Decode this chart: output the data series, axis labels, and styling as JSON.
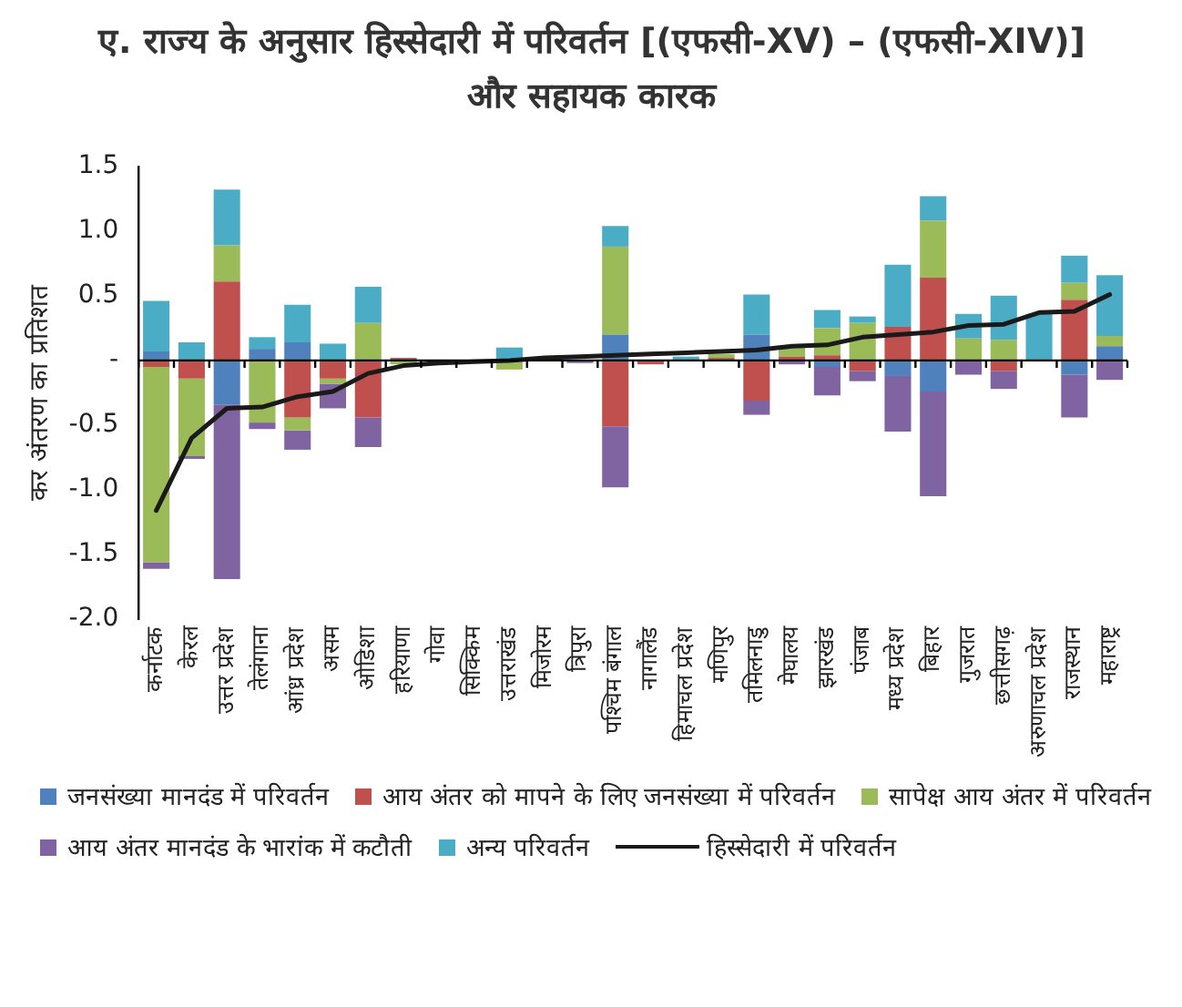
{
  "chart_data": {
    "type": "bar",
    "stacked": true,
    "title": "ए. राज्य के अनुसार हिस्सेदारी में परिवर्तन [(एफसी-XV) – (एफसी-XIV)] और सहायक कारक",
    "ylabel": "कर अंतरण का प्रतिशत",
    "categories": [
      "कर्नाटक",
      "केरल",
      "उत्तर प्रदेश",
      "तेलंगाना",
      "आंध्र प्रदेश",
      "असम",
      "ओडिशा",
      "हरियाणा",
      "गोवा",
      "सिक्किम",
      "उत्तराखंड",
      "मिजोरम",
      "त्रिपुरा",
      "पश्चिम बंगाल",
      "नागालैंड",
      "हिमाचल प्रदेश",
      "मणिपुर",
      "तमिलनाडु",
      "मेघालय",
      "झारखंड",
      "पंजाब",
      "मध्य प्रदेश",
      "बिहार",
      "गुजरात",
      "छत्तीसगढ़",
      "अरुणाचल प्रदेश",
      "राजस्थान",
      "महाराष्ट्र"
    ],
    "ylim": [
      -2.0,
      1.5
    ],
    "yticks": [
      {
        "value": -2.0,
        "label": "-2.0"
      },
      -1.5,
      {
        "value": -1.0,
        "label": "-1.0"
      },
      -0.5,
      {
        "value": 0,
        "label": "-"
      },
      0.5,
      {
        "value": 1.0,
        "label": "1.0"
      },
      1.5
    ],
    "grid": false,
    "legend": "bottom",
    "ref_lines": [
      {
        "axis": "y",
        "value": 0,
        "color": "#000000"
      }
    ],
    "series": [
      {
        "name": "जनसंख्या मानदंड में परिवर्तन",
        "color": "#4f81bd",
        "values": [
          0.07,
          null,
          -0.34,
          0.09,
          0.14,
          null,
          null,
          null,
          null,
          null,
          null,
          null,
          null,
          0.2,
          null,
          null,
          null,
          0.2,
          null,
          -0.05,
          null,
          -0.12,
          -0.24,
          null,
          null,
          null,
          -0.11,
          0.11
        ]
      },
      {
        "name": "आय अंतर को मापने के लिए जनसंख्या में परिवर्तन",
        "color": "#c0504d",
        "values": [
          -0.05,
          -0.14,
          0.61,
          null,
          -0.44,
          -0.14,
          -0.44,
          0.02,
          null,
          null,
          null,
          null,
          null,
          -0.51,
          -0.03,
          null,
          0.02,
          -0.31,
          0.03,
          0.04,
          -0.08,
          0.26,
          0.64,
          null,
          -0.08,
          null,
          0.47,
          null
        ]
      },
      {
        "name": "सापेक्ष आय अंतर में परिवर्तन",
        "color": "#9bbb59",
        "values": [
          -1.51,
          -0.6,
          0.28,
          -0.48,
          -0.1,
          -0.04,
          0.29,
          -0.03,
          null,
          null,
          -0.07,
          null,
          null,
          0.68,
          null,
          null,
          0.03,
          null,
          0.08,
          0.21,
          0.29,
          null,
          0.44,
          0.17,
          0.16,
          null,
          0.13,
          0.08
        ]
      },
      {
        "name": "आय अंतर मानदंड के भारांक में कटौती",
        "color": "#8064a2",
        "values": [
          -0.05,
          -0.02,
          -1.35,
          -0.05,
          -0.15,
          -0.19,
          -0.23,
          null,
          null,
          null,
          null,
          null,
          -0.02,
          -0.47,
          null,
          null,
          null,
          -0.11,
          -0.03,
          -0.22,
          -0.08,
          -0.43,
          -0.81,
          -0.11,
          -0.14,
          null,
          -0.33,
          -0.15
        ]
      },
      {
        "name": "अन्य परिवर्तन",
        "color": "#4bacc6",
        "values": [
          0.39,
          0.14,
          0.43,
          0.09,
          0.29,
          0.13,
          0.28,
          null,
          null,
          null,
          0.1,
          null,
          null,
          0.16,
          null,
          0.03,
          null,
          0.31,
          null,
          0.14,
          0.05,
          0.48,
          0.19,
          0.19,
          0.34,
          0.36,
          0.21,
          0.47
        ]
      },
      {
        "name": "हिस्सेदारी में परिवर्तन",
        "type": "line",
        "color": "#1a1a1a",
        "values": [
          -1.16,
          -0.6,
          -0.37,
          -0.36,
          -0.28,
          -0.24,
          -0.1,
          -0.04,
          -0.02,
          -0.01,
          0.0,
          0.02,
          0.03,
          0.04,
          0.05,
          0.06,
          0.07,
          0.08,
          0.11,
          0.12,
          0.18,
          0.2,
          0.22,
          0.27,
          0.28,
          0.37,
          0.38,
          0.51
        ]
      }
    ]
  }
}
